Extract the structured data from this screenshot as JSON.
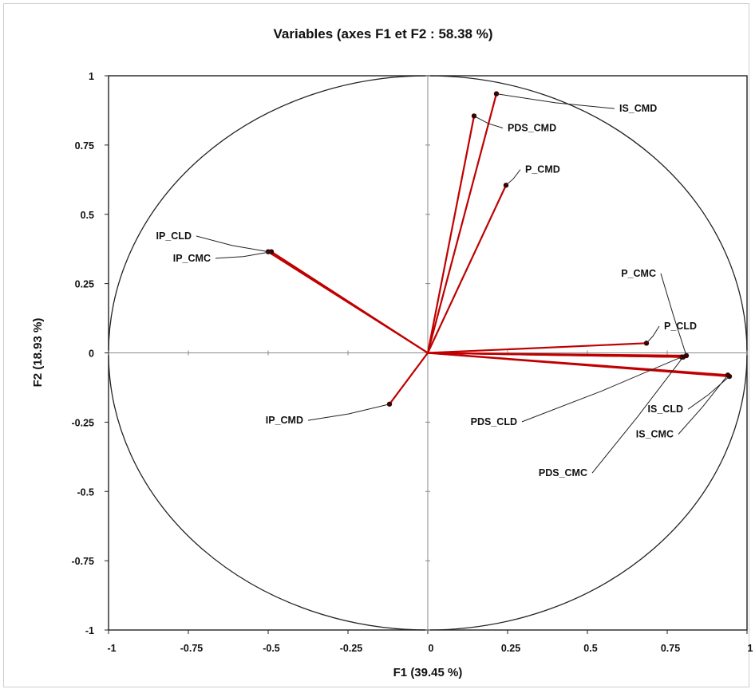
{
  "chart_data": {
    "type": "scatter",
    "title": "Variables (axes F1 et F2 : 58.38 %)",
    "xlabel": "F1 (39.45 %)",
    "ylabel": "F2 (18.93 %)",
    "xlim": [
      -1,
      1
    ],
    "ylim": [
      -1,
      1
    ],
    "x_ticks": [
      -1,
      -0.75,
      -0.5,
      -0.25,
      0,
      0.25,
      0.5,
      0.75,
      1
    ],
    "y_ticks": [
      -1,
      -0.75,
      -0.5,
      -0.25,
      0,
      0.25,
      0.5,
      0.75,
      1
    ],
    "x_tick_labels": [
      "-1",
      "-0.75",
      "-0.5",
      "-0.25",
      "0",
      "0.25",
      "0.5",
      "0.75",
      "1"
    ],
    "y_tick_labels": [
      "-1",
      "-0.75",
      "-0.5",
      "-0.25",
      "0",
      "0.25",
      "0.5",
      "0.75",
      "1"
    ],
    "correlation_circle": true,
    "vector_color": "#c00000",
    "variables": [
      {
        "name": "IS_CMD",
        "x": 0.215,
        "y": 0.935,
        "label_x": 0.6,
        "label_y": 0.87
      },
      {
        "name": "PDS_CMD",
        "x": 0.145,
        "y": 0.855,
        "label_x": 0.25,
        "label_y": 0.8
      },
      {
        "name": "P_CMD",
        "x": 0.245,
        "y": 0.605,
        "label_x": 0.305,
        "label_y": 0.65
      },
      {
        "name": "IP_CLD",
        "x": -0.5,
        "y": 0.365,
        "label_x": -0.74,
        "label_y": 0.41
      },
      {
        "name": "IP_CMC",
        "x": -0.49,
        "y": 0.365,
        "label_x": -0.68,
        "label_y": 0.33
      },
      {
        "name": "IP_CMD",
        "x": -0.12,
        "y": -0.185,
        "label_x": -0.39,
        "label_y": -0.255
      },
      {
        "name": "P_CMC",
        "x": 0.81,
        "y": -0.01,
        "label_x": 0.715,
        "label_y": 0.275
      },
      {
        "name": "P_CLD",
        "x": 0.685,
        "y": 0.035,
        "label_x": 0.74,
        "label_y": 0.085
      },
      {
        "name": "PDS_CLD",
        "x": 0.795,
        "y": -0.015,
        "label_x": 0.28,
        "label_y": -0.26
      },
      {
        "name": "PDS_CMC",
        "x": 0.8,
        "y": -0.015,
        "label_x": 0.5,
        "label_y": -0.445
      },
      {
        "name": "IS_CLD",
        "x": 0.945,
        "y": -0.085,
        "label_x": 0.8,
        "label_y": -0.215
      },
      {
        "name": "IS_CMC",
        "x": 0.94,
        "y": -0.08,
        "label_x": 0.77,
        "label_y": -0.305
      }
    ],
    "grid": false,
    "legend": "none"
  }
}
